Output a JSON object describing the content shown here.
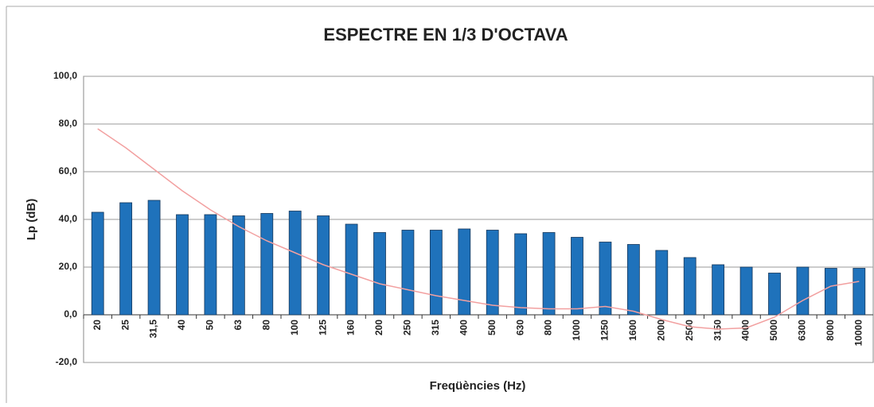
{
  "chart_data": {
    "type": "bar",
    "title": "ESPECTRE EN 1/3 D'OCTAVA",
    "x_label": "Freqüències (Hz)",
    "y_label": "Lp (dB)",
    "categories": [
      "20",
      "25",
      "31,5",
      "40",
      "50",
      "63",
      "80",
      "100",
      "125",
      "160",
      "200",
      "250",
      "315",
      "400",
      "500",
      "630",
      "800",
      "1000",
      "1250",
      "1600",
      "2000",
      "2500",
      "3150",
      "4000",
      "5000",
      "6300",
      "8000",
      "10000"
    ],
    "series": [
      {
        "type": "bar",
        "color": "#1f72bb",
        "values": [
          43,
          47,
          48,
          42,
          42,
          41.5,
          42.5,
          43.5,
          41.5,
          38,
          34.5,
          35.5,
          35.5,
          36,
          35.5,
          34,
          34.5,
          32.5,
          30.5,
          29.5,
          27,
          24,
          21,
          20,
          17.5,
          20,
          19.5,
          19.5
        ]
      },
      {
        "type": "line",
        "color": "#f2a0a0",
        "values": [
          78,
          70,
          61,
          52,
          44,
          37,
          31,
          26,
          21,
          17,
          13,
          10.5,
          8,
          6,
          4,
          3,
          2.5,
          2.5,
          3.5,
          1.5,
          -2,
          -5,
          -6,
          -5.5,
          -1,
          6,
          12,
          14
        ]
      }
    ],
    "ylim": [
      -20,
      100
    ],
    "yticks": [
      {
        "value": -20,
        "label": "-20,0"
      },
      {
        "value": 0,
        "label": "0,0"
      },
      {
        "value": 20,
        "label": "20,0"
      },
      {
        "value": 40,
        "label": "40,0"
      },
      {
        "value": 60,
        "label": "60,0"
      },
      {
        "value": 80,
        "label": "80,0"
      },
      {
        "value": 100,
        "label": "100,0"
      }
    ],
    "grid": true
  }
}
